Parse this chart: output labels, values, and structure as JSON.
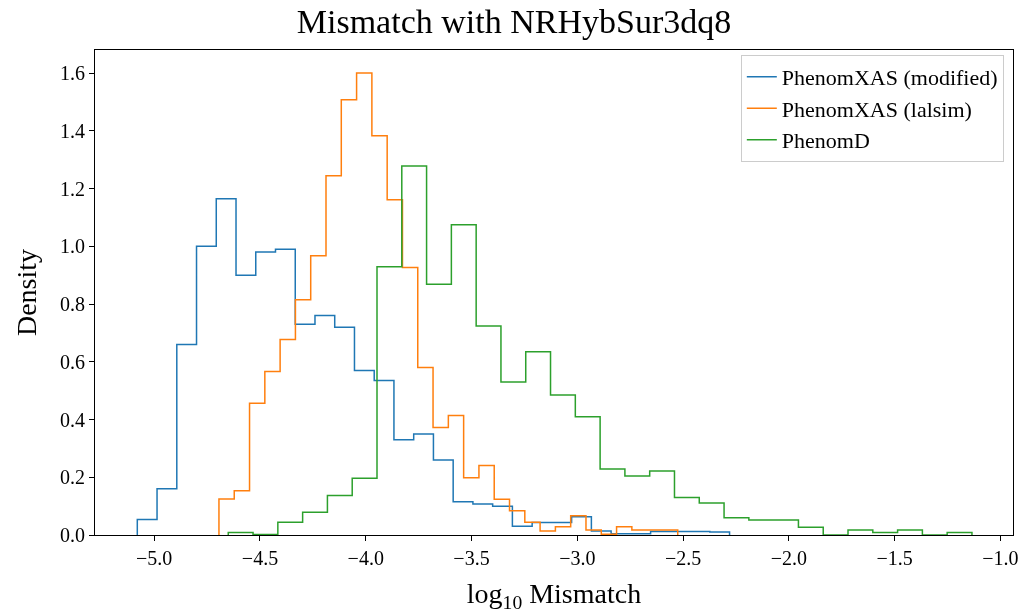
{
  "chart_data": {
    "type": "step",
    "title": "Mismatch with NRHybSur3dq8",
    "xlabel": "log$_{10}$ Mismatch",
    "ylabel": "Density",
    "series": [
      {
        "name": "PhenomXAS (modified)",
        "color": "#1f77b4",
        "x": [
          -5.08,
          -5.08,
          -4.9867,
          -4.8933,
          -4.8,
          -4.7067,
          -4.6133,
          -4.52,
          -4.4267,
          -4.3333,
          -4.24,
          -4.1467,
          -4.0533,
          -3.96,
          -3.8667,
          -3.7733,
          -3.68,
          -3.5867,
          -3.4933,
          -3.4,
          -3.3067,
          -3.2133,
          -3.12,
          -3.0267,
          -2.9333,
          -2.84,
          -2.7467,
          -2.6533,
          -2.56,
          -2.4667,
          -2.3733,
          -2.28
        ],
        "values": [
          0,
          0.054,
          0.16,
          0.66,
          1.0,
          1.165,
          0.9,
          0.98,
          0.99,
          0.73,
          0.76,
          0.72,
          0.57,
          0.535,
          0.33,
          0.35,
          0.26,
          0.115,
          0.107,
          0.1,
          0.03,
          0.043,
          0.043,
          0.063,
          0.014,
          0.004,
          0.004,
          0.012,
          0.012,
          0.012,
          0.01,
          0
        ]
      },
      {
        "name": "PhenomXAS (lalsim)",
        "color": "#ff7f0e",
        "x": [
          -4.694,
          -4.694,
          -4.6217,
          -4.5494,
          -4.4771,
          -4.4048,
          -4.3325,
          -4.2602,
          -4.1879,
          -4.1156,
          -4.0433,
          -3.971,
          -3.8987,
          -3.8264,
          -3.7541,
          -3.6818,
          -3.6095,
          -3.5372,
          -3.4649,
          -3.3926,
          -3.3203,
          -3.248,
          -3.1757,
          -3.1034,
          -3.0311,
          -2.9588,
          -2.8865,
          -2.8142,
          -2.7419,
          -2.6696,
          -2.5973,
          -2.525
        ],
        "values": [
          0,
          0.125,
          0.153,
          0.456,
          0.566,
          0.677,
          0.815,
          0.967,
          1.244,
          1.508,
          1.6,
          1.383,
          1.161,
          0.927,
          0.58,
          0.372,
          0.414,
          0.198,
          0.241,
          0.124,
          0.084,
          0.044,
          0.014,
          0.029,
          0.067,
          0.017,
          0.003,
          0.029,
          0.017,
          0.017,
          0.017,
          0
        ]
      },
      {
        "name": "PhenomD",
        "color": "#2ca02c",
        "x": [
          -4.65,
          -4.65,
          -4.5328,
          -4.4156,
          -4.2984,
          -4.1812,
          -4.064,
          -3.9468,
          -3.8296,
          -3.7124,
          -3.5952,
          -3.478,
          -3.3608,
          -3.2436,
          -3.1264,
          -3.0092,
          -2.892,
          -2.7748,
          -2.6576,
          -2.5404,
          -2.4232,
          -2.306,
          -2.1888,
          -2.0716,
          -1.9544,
          -1.8372,
          -1.72,
          -1.6028,
          -1.4856,
          -1.3684,
          -1.2512,
          -1.134
        ],
        "values": [
          0,
          0.009,
          0.002,
          0.044,
          0.079,
          0.137,
          0.197,
          0.929,
          1.278,
          0.869,
          1.075,
          0.724,
          0.53,
          0.635,
          0.485,
          0.41,
          0.229,
          0.204,
          0.222,
          0.13,
          0.111,
          0.06,
          0.052,
          0.052,
          0.027,
          0.0,
          0.017,
          0.009,
          0.017,
          0.0,
          0.009,
          0
        ]
      }
    ],
    "xlim": [
      -5.28,
      -0.94
    ],
    "ylim": [
      0,
      1.68
    ],
    "xticks": [
      {
        "value": -5.0,
        "label": "−5.0"
      },
      {
        "value": -4.5,
        "label": "−4.5"
      },
      {
        "value": -4.0,
        "label": "−4.0"
      },
      {
        "value": -3.5,
        "label": "−3.5"
      },
      {
        "value": -3.0,
        "label": "−3.0"
      },
      {
        "value": -2.5,
        "label": "−2.5"
      },
      {
        "value": -2.0,
        "label": "−2.0"
      },
      {
        "value": -1.5,
        "label": "−1.5"
      },
      {
        "value": -1.0,
        "label": "−1.0"
      }
    ],
    "yticks": [
      {
        "value": 0,
        "label": "0.0"
      },
      {
        "value": 0.2,
        "label": "0.2"
      },
      {
        "value": 0.4,
        "label": "0.4"
      },
      {
        "value": 0.6,
        "label": "0.6"
      },
      {
        "value": 0.8,
        "label": "0.8"
      },
      {
        "value": 1.0,
        "label": "1.0"
      },
      {
        "value": 1.2,
        "label": "1.2"
      },
      {
        "value": 1.4,
        "label": "1.4"
      },
      {
        "value": 1.6,
        "label": "1.6"
      }
    ],
    "grid": false,
    "legend": "top right"
  }
}
